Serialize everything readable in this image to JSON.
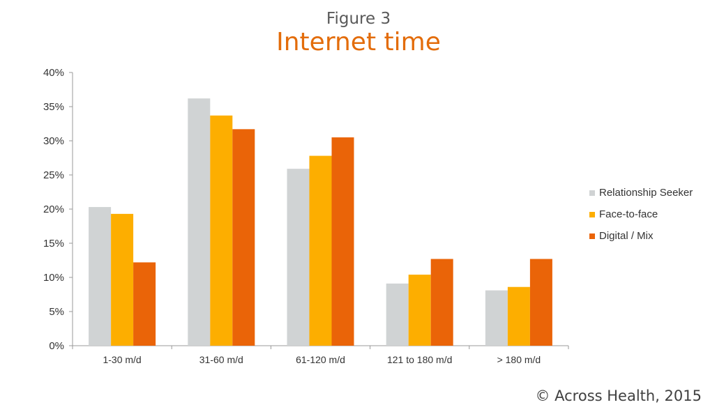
{
  "figure_label": "Figure 3",
  "footer": "©  Across Health, 2015",
  "colors": {
    "title": "#e36c0a",
    "series": [
      "#d0d3d4",
      "#fdae00",
      "#ea6408"
    ],
    "axis": "#999999",
    "text": "#333333"
  },
  "chart_data": {
    "type": "bar",
    "title": "Internet time",
    "xlabel": "",
    "ylabel": "",
    "categories": [
      "1-30 m/d",
      "31-60 m/d",
      "61-120 m/d",
      "121 to 180 m/d",
      "> 180 m/d"
    ],
    "series": [
      {
        "name": "Relationship Seeker",
        "values": [
          20.3,
          36.2,
          25.9,
          9.1,
          8.1
        ]
      },
      {
        "name": "Face-to-face",
        "values": [
          19.3,
          33.7,
          27.8,
          10.4,
          8.6
        ]
      },
      {
        "name": "Digital / Mix",
        "values": [
          12.2,
          31.7,
          30.5,
          12.7,
          12.7
        ]
      }
    ],
    "ylim": [
      0,
      40
    ],
    "yticks": [
      "0%",
      "5%",
      "10%",
      "15%",
      "20%",
      "25%",
      "30%",
      "35%",
      "40%"
    ],
    "grid": false,
    "legend_position": "right"
  }
}
